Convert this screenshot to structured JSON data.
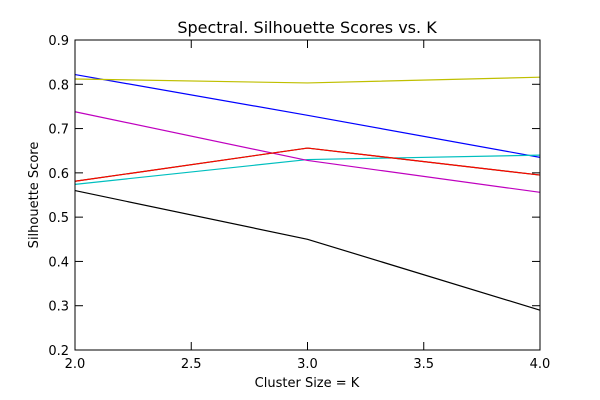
{
  "chart_data": {
    "type": "line",
    "title": "Spectral. Silhouette Scores vs. K",
    "xlabel": "Cluster Size = K",
    "ylabel": "Silhouette Score",
    "xlim": [
      2.0,
      4.0
    ],
    "ylim": [
      0.2,
      0.9
    ],
    "x_ticks": [
      "2.0",
      "2.5",
      "3.0",
      "3.5",
      "4.0"
    ],
    "y_ticks": [
      "0.2",
      "0.3",
      "0.4",
      "0.5",
      "0.6",
      "0.7",
      "0.8",
      "0.9"
    ],
    "grid": false,
    "x": [
      2,
      3,
      4
    ],
    "series": [
      {
        "color": "#0000ff",
        "values": [
          0.822,
          0.73,
          0.635
        ]
      },
      {
        "color": "#00bfbf",
        "values": [
          0.574,
          0.63,
          0.64
        ]
      },
      {
        "color": "#bfbf00",
        "values": [
          0.812,
          0.803,
          0.816
        ]
      },
      {
        "color": "#bf00bf",
        "values": [
          0.738,
          0.628,
          0.556
        ]
      },
      {
        "color": "#008000",
        "values": [
          0.581,
          0.656,
          0.595
        ]
      },
      {
        "color": "#ff0000",
        "values": [
          0.581,
          0.656,
          0.595
        ]
      },
      {
        "color": "#000000",
        "values": [
          0.56,
          0.45,
          0.29
        ]
      }
    ]
  }
}
